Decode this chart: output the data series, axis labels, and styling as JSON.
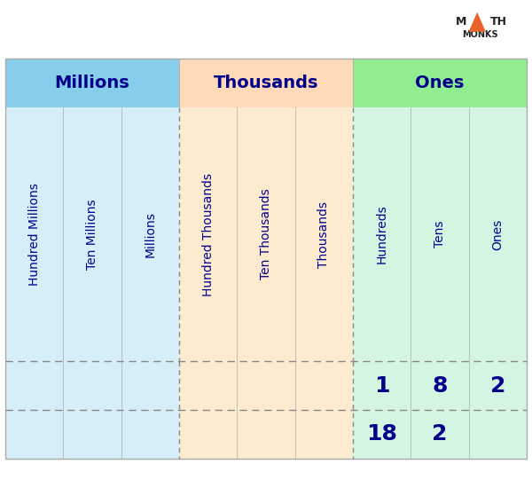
{
  "fig_width": 6.0,
  "fig_height": 5.5,
  "dpi": 100,
  "bg_color": "#ffffff",
  "group_headers": [
    "Millions",
    "Thousands",
    "Ones"
  ],
  "group_header_bg": [
    "#87CEEB",
    "#FFDAB9",
    "#90EE90"
  ],
  "group_header_text_color": "#00008B",
  "col_labels": [
    "Hundred Millions",
    "Ten Millions",
    "Millions",
    "Hundred Thousands",
    "Ten Thousands",
    "Thousands",
    "Hundreds",
    "Tens",
    "Ones"
  ],
  "col_groups": [
    0,
    0,
    0,
    1,
    1,
    1,
    2,
    2,
    2
  ],
  "col_bg_light": [
    "#D6EEF8",
    "#FDEBD0",
    "#D5F5E3"
  ],
  "col_label_color": "#00008B",
  "dashed_line_color": "#888888",
  "row1_values": [
    "",
    "",
    "",
    "",
    "",
    "",
    "1",
    "8",
    "2"
  ],
  "row2_values": [
    "",
    "",
    "",
    "",
    "",
    "",
    "18",
    "2",
    ""
  ],
  "row_value_color": "#00008B",
  "row_value_fontsize": 18,
  "logo_color": "#222222",
  "logo_triangle_color": "#E8622A",
  "header_fontsize": 14,
  "col_label_fontsize": 10,
  "border_color": "#aaaaaa",
  "dashed_group_border_color": "#888888"
}
